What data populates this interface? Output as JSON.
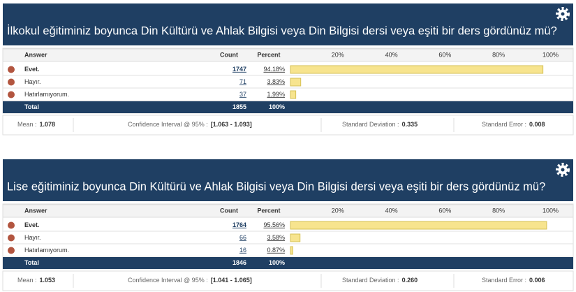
{
  "panels": [
    {
      "title": "İlkokul eğitiminiz boyunca Din Kültürü ve Ahlak Bilgisi veya Din Bilgisi dersi veya eşiti bir ders gördünüz mü?",
      "headers": [
        "Answer",
        "Count",
        "Percent"
      ],
      "ticks": [
        {
          "value": 20,
          "label": "20%"
        },
        {
          "value": 40,
          "label": "40%"
        },
        {
          "value": 60,
          "label": "60%"
        },
        {
          "value": 80,
          "label": "80%"
        },
        {
          "value": 100,
          "label": "100%"
        }
      ],
      "answers": [
        "Evet.",
        "Hayır.",
        "Hatırlamıyorum."
      ],
      "counts": [
        1747,
        71,
        37
      ],
      "percents": [
        94.18,
        3.83,
        1.99
      ],
      "percent_labels": [
        "94.18%",
        "3.83%",
        "1.99%"
      ],
      "total_label": "Total",
      "total_count": 1855,
      "total_percent": "100%",
      "stats": [
        {
          "label": "Mean :",
          "value": "1.078"
        },
        {
          "label": "Confidence Interval @ 95% :",
          "value": "[1.063 - 1.093]"
        },
        {
          "label": "Standard Deviation :",
          "value": "0.335"
        },
        {
          "label": "Standard Error :",
          "value": "0.008"
        }
      ]
    },
    {
      "title": "Lise eğitiminiz boyunca Din Kültürü ve Ahlak Bilgisi veya Din Bilgisi dersi veya eşiti bir ders gördünüz mü?",
      "headers": [
        "Answer",
        "Count",
        "Percent"
      ],
      "ticks": [
        {
          "value": 20,
          "label": "20%"
        },
        {
          "value": 40,
          "label": "40%"
        },
        {
          "value": 60,
          "label": "60%"
        },
        {
          "value": 80,
          "label": "80%"
        },
        {
          "value": 100,
          "label": "100%"
        }
      ],
      "answers": [
        "Evet.",
        "Hayır.",
        "Hatırlamıyorum."
      ],
      "counts": [
        1764,
        66,
        16
      ],
      "percents": [
        95.56,
        3.58,
        0.87
      ],
      "percent_labels": [
        "95.56%",
        "3.58%",
        "0.87%"
      ],
      "total_label": "Total",
      "total_count": 1846,
      "total_percent": "100%",
      "stats": [
        {
          "label": "Mean :",
          "value": "1.053"
        },
        {
          "label": "Confidence Interval @ 95% :",
          "value": "[1.041 - 1.065]"
        },
        {
          "label": "Standard Deviation :",
          "value": "0.260"
        },
        {
          "label": "Standard Error :",
          "value": "0.006"
        }
      ]
    }
  ]
}
